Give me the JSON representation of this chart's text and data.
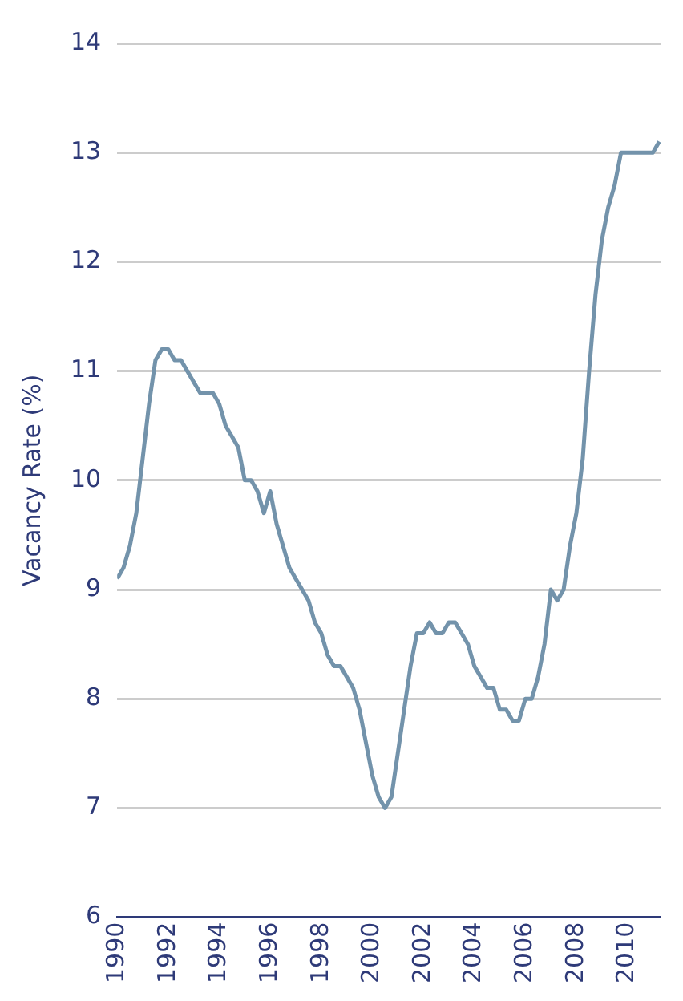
{
  "chart_data": {
    "type": "line",
    "ylabel": "Vacancy Rate (%)",
    "x": [
      1990,
      1990.25,
      1990.5,
      1990.75,
      1991,
      1991.25,
      1991.5,
      1991.75,
      1992,
      1992.25,
      1992.5,
      1992.75,
      1993,
      1993.25,
      1993.5,
      1993.75,
      1994,
      1994.25,
      1994.5,
      1994.75,
      1995,
      1995.25,
      1995.5,
      1995.75,
      1996,
      1996.25,
      1996.5,
      1996.75,
      1997,
      1997.25,
      1997.5,
      1997.75,
      1998,
      1998.25,
      1998.5,
      1998.75,
      1999,
      1999.25,
      1999.5,
      1999.75,
      2000,
      2000.25,
      2000.5,
      2000.75,
      2001,
      2001.25,
      2001.5,
      2001.75,
      2002,
      2002.25,
      2002.5,
      2002.75,
      2003,
      2003.25,
      2003.5,
      2003.75,
      2004,
      2004.25,
      2004.5,
      2004.75,
      2005,
      2005.25,
      2005.5,
      2005.75,
      2006,
      2006.25,
      2006.5,
      2006.75,
      2007,
      2007.25,
      2007.5,
      2007.75,
      2008,
      2008.25,
      2008.5,
      2008.75,
      2009,
      2009.25,
      2009.5,
      2009.75,
      2010,
      2010.25,
      2010.5,
      2010.75,
      2011,
      2011.25
    ],
    "series": [
      {
        "color": "#7393ab",
        "values": [
          9.1,
          9.2,
          9.4,
          9.7,
          10.2,
          10.7,
          11.1,
          11.2,
          11.2,
          11.1,
          11.1,
          11.0,
          10.9,
          10.8,
          10.8,
          10.8,
          10.7,
          10.5,
          10.4,
          10.3,
          10.0,
          10.0,
          9.9,
          9.7,
          9.9,
          9.6,
          9.4,
          9.2,
          9.1,
          9.0,
          8.9,
          8.7,
          8.6,
          8.4,
          8.3,
          8.3,
          8.2,
          8.1,
          7.9,
          7.6,
          7.3,
          7.1,
          7.0,
          7.1,
          7.5,
          7.9,
          8.3,
          8.6,
          8.6,
          8.7,
          8.6,
          8.6,
          8.7,
          8.7,
          8.6,
          8.5,
          8.3,
          8.2,
          8.1,
          8.1,
          7.9,
          7.9,
          7.8,
          7.8,
          8.0,
          8.0,
          8.2,
          8.5,
          9.0,
          8.9,
          9.0,
          9.4,
          9.7,
          10.2,
          11.0,
          11.7,
          12.2,
          12.5,
          12.7,
          13.0,
          13.0,
          13.0,
          13.0,
          13.0,
          13.0,
          13.1
        ]
      }
    ],
    "xlim": [
      1990,
      2011.3
    ],
    "xticks": [
      1990,
      1992,
      1994,
      1996,
      1998,
      2000,
      2002,
      2004,
      2006,
      2008,
      2010
    ],
    "ylim": [
      6,
      14
    ],
    "yticks": [
      6,
      7,
      8,
      9,
      10,
      11,
      12,
      13,
      14
    ],
    "grid": "y",
    "legend": false,
    "marker": "none",
    "line_style": "solid"
  }
}
